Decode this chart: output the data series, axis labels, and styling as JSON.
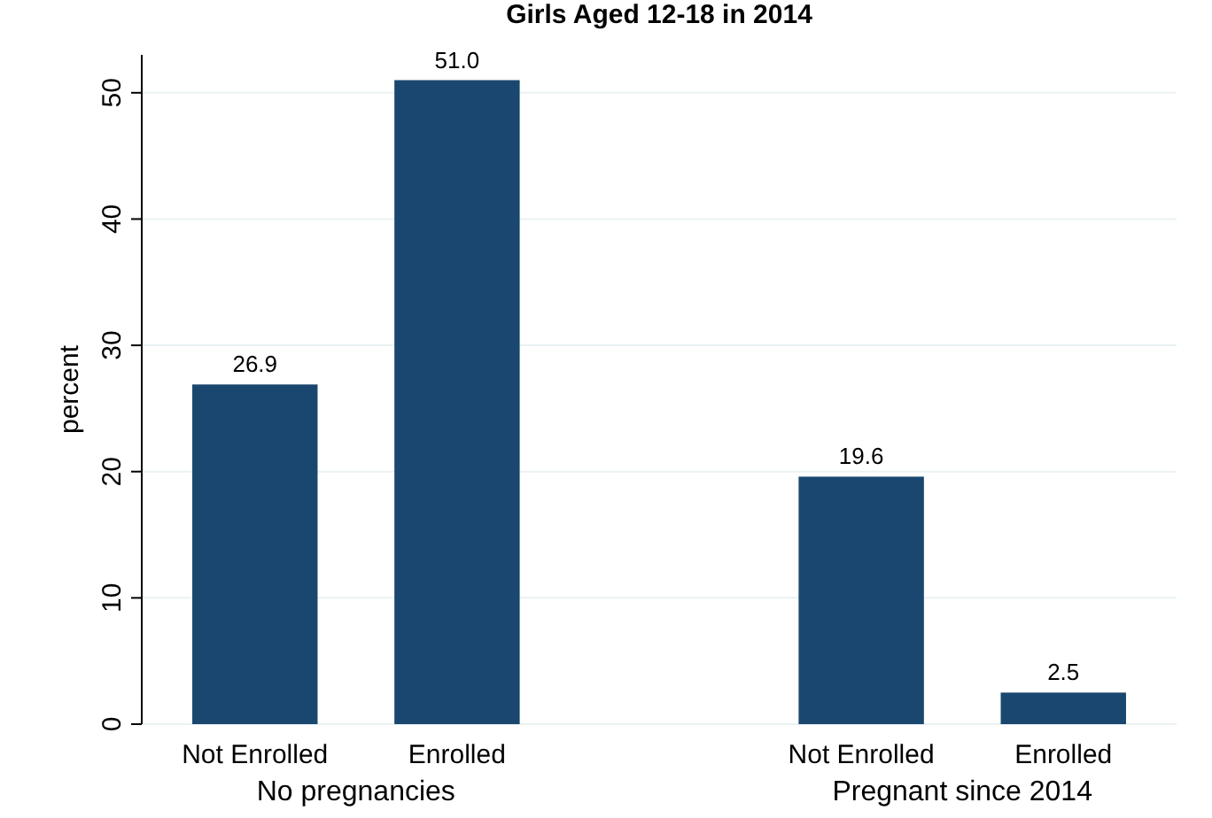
{
  "chart_data": {
    "type": "bar",
    "title": "Girls Aged 12-18 in 2014",
    "ylabel": "percent",
    "categories": [
      "Not Enrolled",
      "Enrolled",
      null,
      "Not Enrolled",
      "Enrolled"
    ],
    "values": [
      26.9,
      51.0,
      null,
      19.6,
      2.5
    ],
    "color": "#1a476f",
    "value_labels": [
      "26.9",
      "51.0",
      null,
      "19.6",
      "2.5"
    ],
    "ylim": [
      0,
      53
    ],
    "yticks": [
      0,
      10,
      20,
      30,
      40,
      50
    ],
    "grid": "y",
    "annotations": [
      "No pregnancies",
      "Pregnant since 2014"
    ]
  }
}
